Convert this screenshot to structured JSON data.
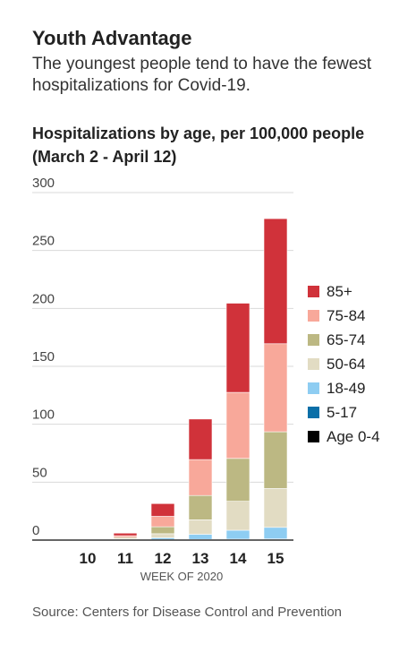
{
  "title": "Youth Advantage",
  "subtitle": "The youngest people tend to have the fewest hospitalizations for Covid-19.",
  "chart_title": "Hospitalizations by age, per 100,000 people (March 2 - April 12)",
  "source": "Source: Centers for Disease Control and Prevention",
  "chart_data": {
    "type": "bar",
    "stacked": true,
    "xlabel": "WEEK OF 2020",
    "ylabel": "",
    "ylim": [
      0,
      300
    ],
    "yticks": [
      0,
      50,
      100,
      150,
      200,
      250,
      300
    ],
    "grid": true,
    "legend_position": "right",
    "categories": [
      "10",
      "11",
      "12",
      "13",
      "14",
      "15"
    ],
    "series": [
      {
        "name": "Age 0-4",
        "color": "#000000",
        "values": [
          0,
          0.1,
          0.2,
          0.3,
          0.4,
          0.5
        ]
      },
      {
        "name": "5-17",
        "color": "#0a6fa8",
        "values": [
          0,
          0.1,
          0.2,
          0.3,
          0.4,
          0.5
        ]
      },
      {
        "name": "18-49",
        "color": "#8ecdf2",
        "values": [
          0,
          0.4,
          1.6,
          4.4,
          7.7,
          10
        ]
      },
      {
        "name": "50-64",
        "color": "#e2dcc3",
        "values": [
          0,
          0.7,
          3.5,
          12.5,
          25,
          33.5
        ]
      },
      {
        "name": "65-74",
        "color": "#bcb883",
        "values": [
          0,
          1,
          6,
          21,
          37,
          49
        ]
      },
      {
        "name": "75-84",
        "color": "#f8a89a",
        "values": [
          0,
          1.5,
          9,
          31,
          57,
          76
        ]
      },
      {
        "name": "85+",
        "color": "#d0323a",
        "values": [
          0,
          2.2,
          11,
          35,
          77,
          108
        ]
      }
    ]
  }
}
